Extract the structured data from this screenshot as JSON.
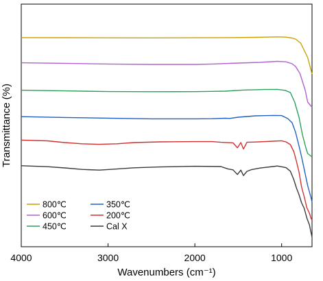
{
  "chart_data": {
    "type": "line",
    "xlabel": "Wavenumbers (cm⁻¹)",
    "ylabel": "Transmittance (%)",
    "xlim": [
      4000,
      650
    ],
    "x_ticks": [
      "4000",
      "3000",
      "2000",
      "1000"
    ],
    "y_ticks_shown": false,
    "legend_position": "bottom-left",
    "series": [
      {
        "name": "800℃",
        "color": "#c8a000",
        "points": [
          [
            4000,
            0.9
          ],
          [
            3500,
            1.0
          ],
          [
            3000,
            1.2
          ],
          [
            2500,
            1.3
          ],
          [
            2000,
            1.1
          ],
          [
            1600,
            0.9
          ],
          [
            1300,
            0.5
          ],
          [
            1050,
            -0.2
          ],
          [
            950,
            0.2
          ],
          [
            880,
            1.5
          ],
          [
            840,
            3
          ],
          [
            780,
            9
          ],
          [
            700,
            30
          ],
          [
            650,
            54
          ]
        ]
      },
      {
        "name": "600℃",
        "color": "#b060d0",
        "points": [
          [
            4000,
            0.6
          ],
          [
            3500,
            1.4
          ],
          [
            3000,
            2.4
          ],
          [
            2500,
            3.0
          ],
          [
            2000,
            3.0
          ],
          [
            1800,
            2.4
          ],
          [
            1500,
            1.0
          ],
          [
            1250,
            0.0
          ],
          [
            1050,
            -1.5
          ],
          [
            950,
            -0.8
          ],
          [
            880,
            2
          ],
          [
            840,
            6
          ],
          [
            790,
            16
          ],
          [
            730,
            40
          ],
          [
            700,
            58
          ],
          [
            660,
            64
          ],
          [
            650,
            65
          ]
        ]
      },
      {
        "name": "450℃",
        "color": "#2aa05a",
        "points": [
          [
            4000,
            0.6
          ],
          [
            3500,
            1.6
          ],
          [
            3000,
            2.6
          ],
          [
            2500,
            2.8
          ],
          [
            2000,
            2.7
          ],
          [
            1800,
            2.3
          ],
          [
            1650,
            2.0
          ],
          [
            1450,
            0.4
          ],
          [
            1200,
            -0.4
          ],
          [
            1050,
            -0.6
          ],
          [
            960,
            0.8
          ],
          [
            900,
            4
          ],
          [
            850,
            18
          ],
          [
            800,
            40
          ],
          [
            760,
            66
          ],
          [
            720,
            85
          ],
          [
            700,
            93
          ],
          [
            660,
            97
          ],
          [
            650,
            97
          ]
        ]
      },
      {
        "name": "350℃",
        "color": "#1f60c0",
        "points": [
          [
            4000,
            1.2
          ],
          [
            3500,
            2.4
          ],
          [
            3000,
            3.4
          ],
          [
            2500,
            4.4
          ],
          [
            2000,
            4.4
          ],
          [
            1800,
            4.2
          ],
          [
            1650,
            3.5
          ],
          [
            1600,
            3.8
          ],
          [
            1500,
            2.0
          ],
          [
            1300,
            0.0
          ],
          [
            1100,
            -0.6
          ],
          [
            1000,
            -0.4
          ],
          [
            930,
            4
          ],
          [
            880,
            10
          ],
          [
            840,
            24
          ],
          [
            800,
            44
          ],
          [
            770,
            60
          ],
          [
            730,
            84
          ],
          [
            700,
            102
          ],
          [
            660,
            120
          ],
          [
            650,
            126
          ]
        ]
      },
      {
        "name": "200℃",
        "color": "#d03030",
        "points": [
          [
            4000,
            -0.6
          ],
          [
            3700,
            0.5
          ],
          [
            3500,
            3.0
          ],
          [
            3300,
            4.8
          ],
          [
            3100,
            5.6
          ],
          [
            2900,
            4.8
          ],
          [
            2700,
            3.0
          ],
          [
            2400,
            2.0
          ],
          [
            2000,
            1.6
          ],
          [
            1800,
            1.6
          ],
          [
            1700,
            2.6
          ],
          [
            1560,
            3.4
          ],
          [
            1510,
            10.6
          ],
          [
            1470,
            3.0
          ],
          [
            1440,
            12.4
          ],
          [
            1400,
            2.6
          ],
          [
            1300,
            2.2
          ],
          [
            1100,
            1.0
          ],
          [
            1000,
            0.4
          ],
          [
            950,
            2.0
          ],
          [
            900,
            6.0
          ],
          [
            860,
            16
          ],
          [
            830,
            30
          ],
          [
            800,
            46
          ],
          [
            770,
            68
          ],
          [
            740,
            82
          ],
          [
            710,
            98
          ],
          [
            680,
            106
          ],
          [
            660,
            114
          ],
          [
            650,
            116
          ]
        ]
      },
      {
        "name": "Cal X",
        "color": "#383838",
        "points": [
          [
            4000,
            -0.2
          ],
          [
            3700,
            1.2
          ],
          [
            3500,
            3.0
          ],
          [
            3300,
            5.2
          ],
          [
            3100,
            6.2
          ],
          [
            2900,
            4.6
          ],
          [
            2700,
            2.8
          ],
          [
            2400,
            1.6
          ],
          [
            2000,
            0.6
          ],
          [
            1700,
            1.0
          ],
          [
            1620,
            4.4
          ],
          [
            1560,
            5.8
          ],
          [
            1510,
            12.6
          ],
          [
            1470,
            6.2
          ],
          [
            1440,
            14.2
          ],
          [
            1400,
            8.0
          ],
          [
            1350,
            5.6
          ],
          [
            1250,
            3.2
          ],
          [
            1100,
            1.0
          ],
          [
            1050,
            0.2
          ],
          [
            950,
            2.6
          ],
          [
            900,
            7.8
          ],
          [
            860,
            20
          ],
          [
            830,
            32
          ],
          [
            800,
            42
          ],
          [
            770,
            54
          ],
          [
            740,
            62
          ],
          [
            710,
            76
          ],
          [
            680,
            86
          ],
          [
            660,
            98
          ],
          [
            650,
            104
          ]
        ]
      }
    ]
  }
}
